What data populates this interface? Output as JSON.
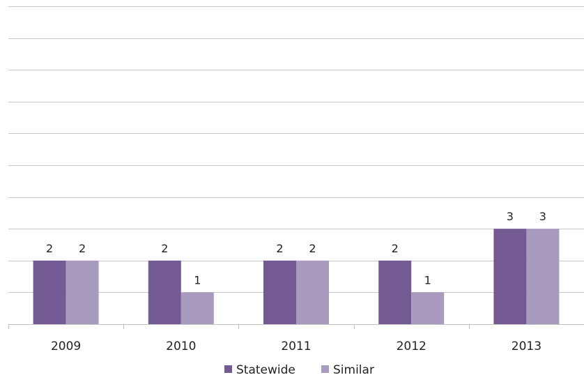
{
  "chart_data": {
    "type": "bar",
    "title": "",
    "xlabel": "",
    "ylabel": "",
    "categories": [
      "2009",
      "2010",
      "2011",
      "2012",
      "2013"
    ],
    "series": [
      {
        "name": "Statewide",
        "values": [
          2,
          2,
          2,
          2,
          3
        ],
        "color": "#735a92"
      },
      {
        "name": "Similar",
        "values": [
          2,
          1,
          2,
          1,
          3
        ],
        "color": "#a99bc0"
      }
    ],
    "data_labels": [
      [
        "2",
        "2",
        "2",
        "2",
        "3"
      ],
      [
        "2",
        "1",
        "2",
        "1",
        "3"
      ]
    ],
    "ylim": [
      0,
      10
    ],
    "y_tick_step": 1,
    "grid": true,
    "y_tick_labels_visible": false,
    "legend_position": "bottom"
  }
}
